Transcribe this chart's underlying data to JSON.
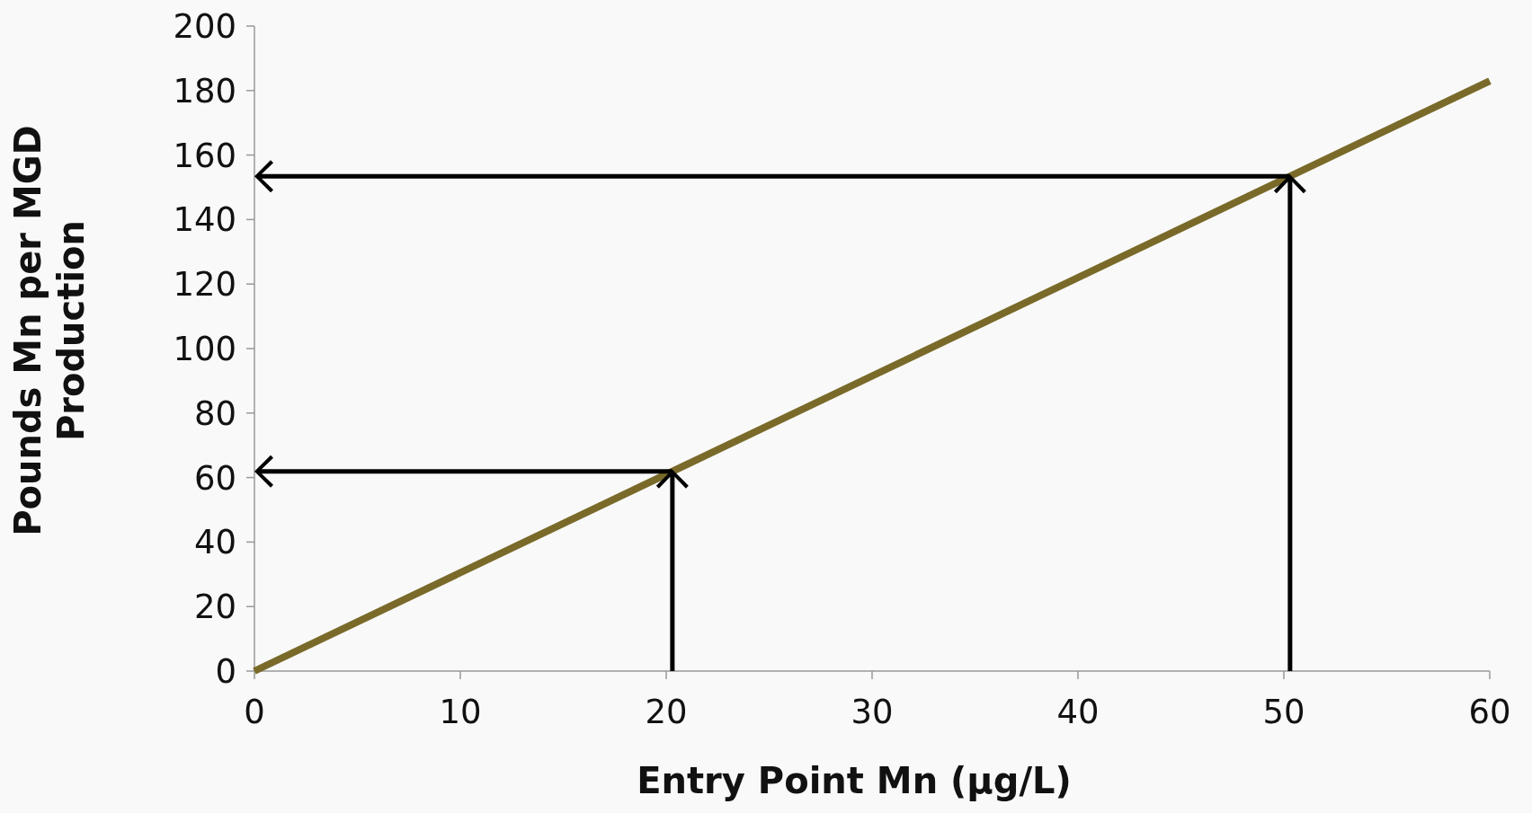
{
  "chart_data": {
    "type": "line",
    "xlabel": "Entry Point Mn (μg/L)",
    "ylabel": "Pounds Mn per MGD\nProduction",
    "x": [
      0,
      60
    ],
    "series": [
      {
        "color": "#7a6a2a",
        "values": [
          0,
          183
        ]
      }
    ],
    "xlim": [
      0,
      60
    ],
    "xticks": [
      0,
      10,
      20,
      30,
      40,
      50,
      60
    ],
    "ylim": [
      0,
      200
    ],
    "yticks": [
      0,
      20,
      40,
      60,
      80,
      100,
      120,
      140,
      160,
      180,
      200
    ],
    "grid": false,
    "line_style": "solid"
  }
}
